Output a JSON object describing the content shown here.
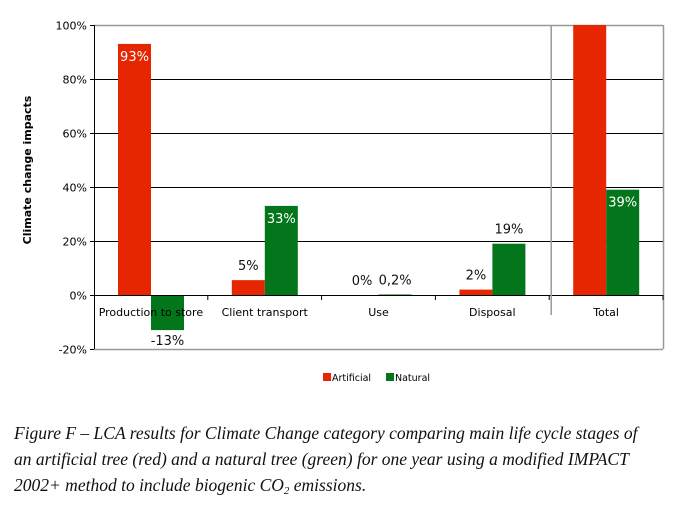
{
  "chart_data": {
    "type": "bar",
    "ylabel": "Climate change impacts",
    "xlabel": "",
    "ylim": [
      -20,
      100
    ],
    "yticks": [
      -20,
      0,
      20,
      40,
      60,
      80,
      100
    ],
    "ytick_labels": [
      "-20%",
      "0%",
      "20%",
      "40%",
      "60%",
      "80%",
      "100%"
    ],
    "grid": true,
    "categories": [
      "Production to store",
      "Client transport",
      "Use",
      "Disposal",
      "Total"
    ],
    "series": [
      {
        "name": "Artificial",
        "color": "#e52600",
        "values": [
          93,
          5.5,
          0,
          2,
          100
        ],
        "labels": [
          "93%",
          "5%",
          "0%",
          "2%",
          ""
        ]
      },
      {
        "name": "Natural",
        "color": "#03761b",
        "values": [
          -13,
          33,
          0.2,
          19,
          39
        ],
        "labels": [
          "-13%",
          "33%",
          "0,2%",
          "19%",
          "39%"
        ]
      }
    ],
    "legend_position": "bottom-center",
    "separator_before_category": "Total"
  },
  "caption": {
    "line1": "Figure F – LCA results for Climate Change category comparing main life cycle stages of",
    "line2": "an artificial tree (red) and a natural tree (green) for one year using a modified IMPACT",
    "line3_pre": "2002+ method to include biogenic CO",
    "line3_sub": "2",
    "line3_post": " emissions."
  }
}
